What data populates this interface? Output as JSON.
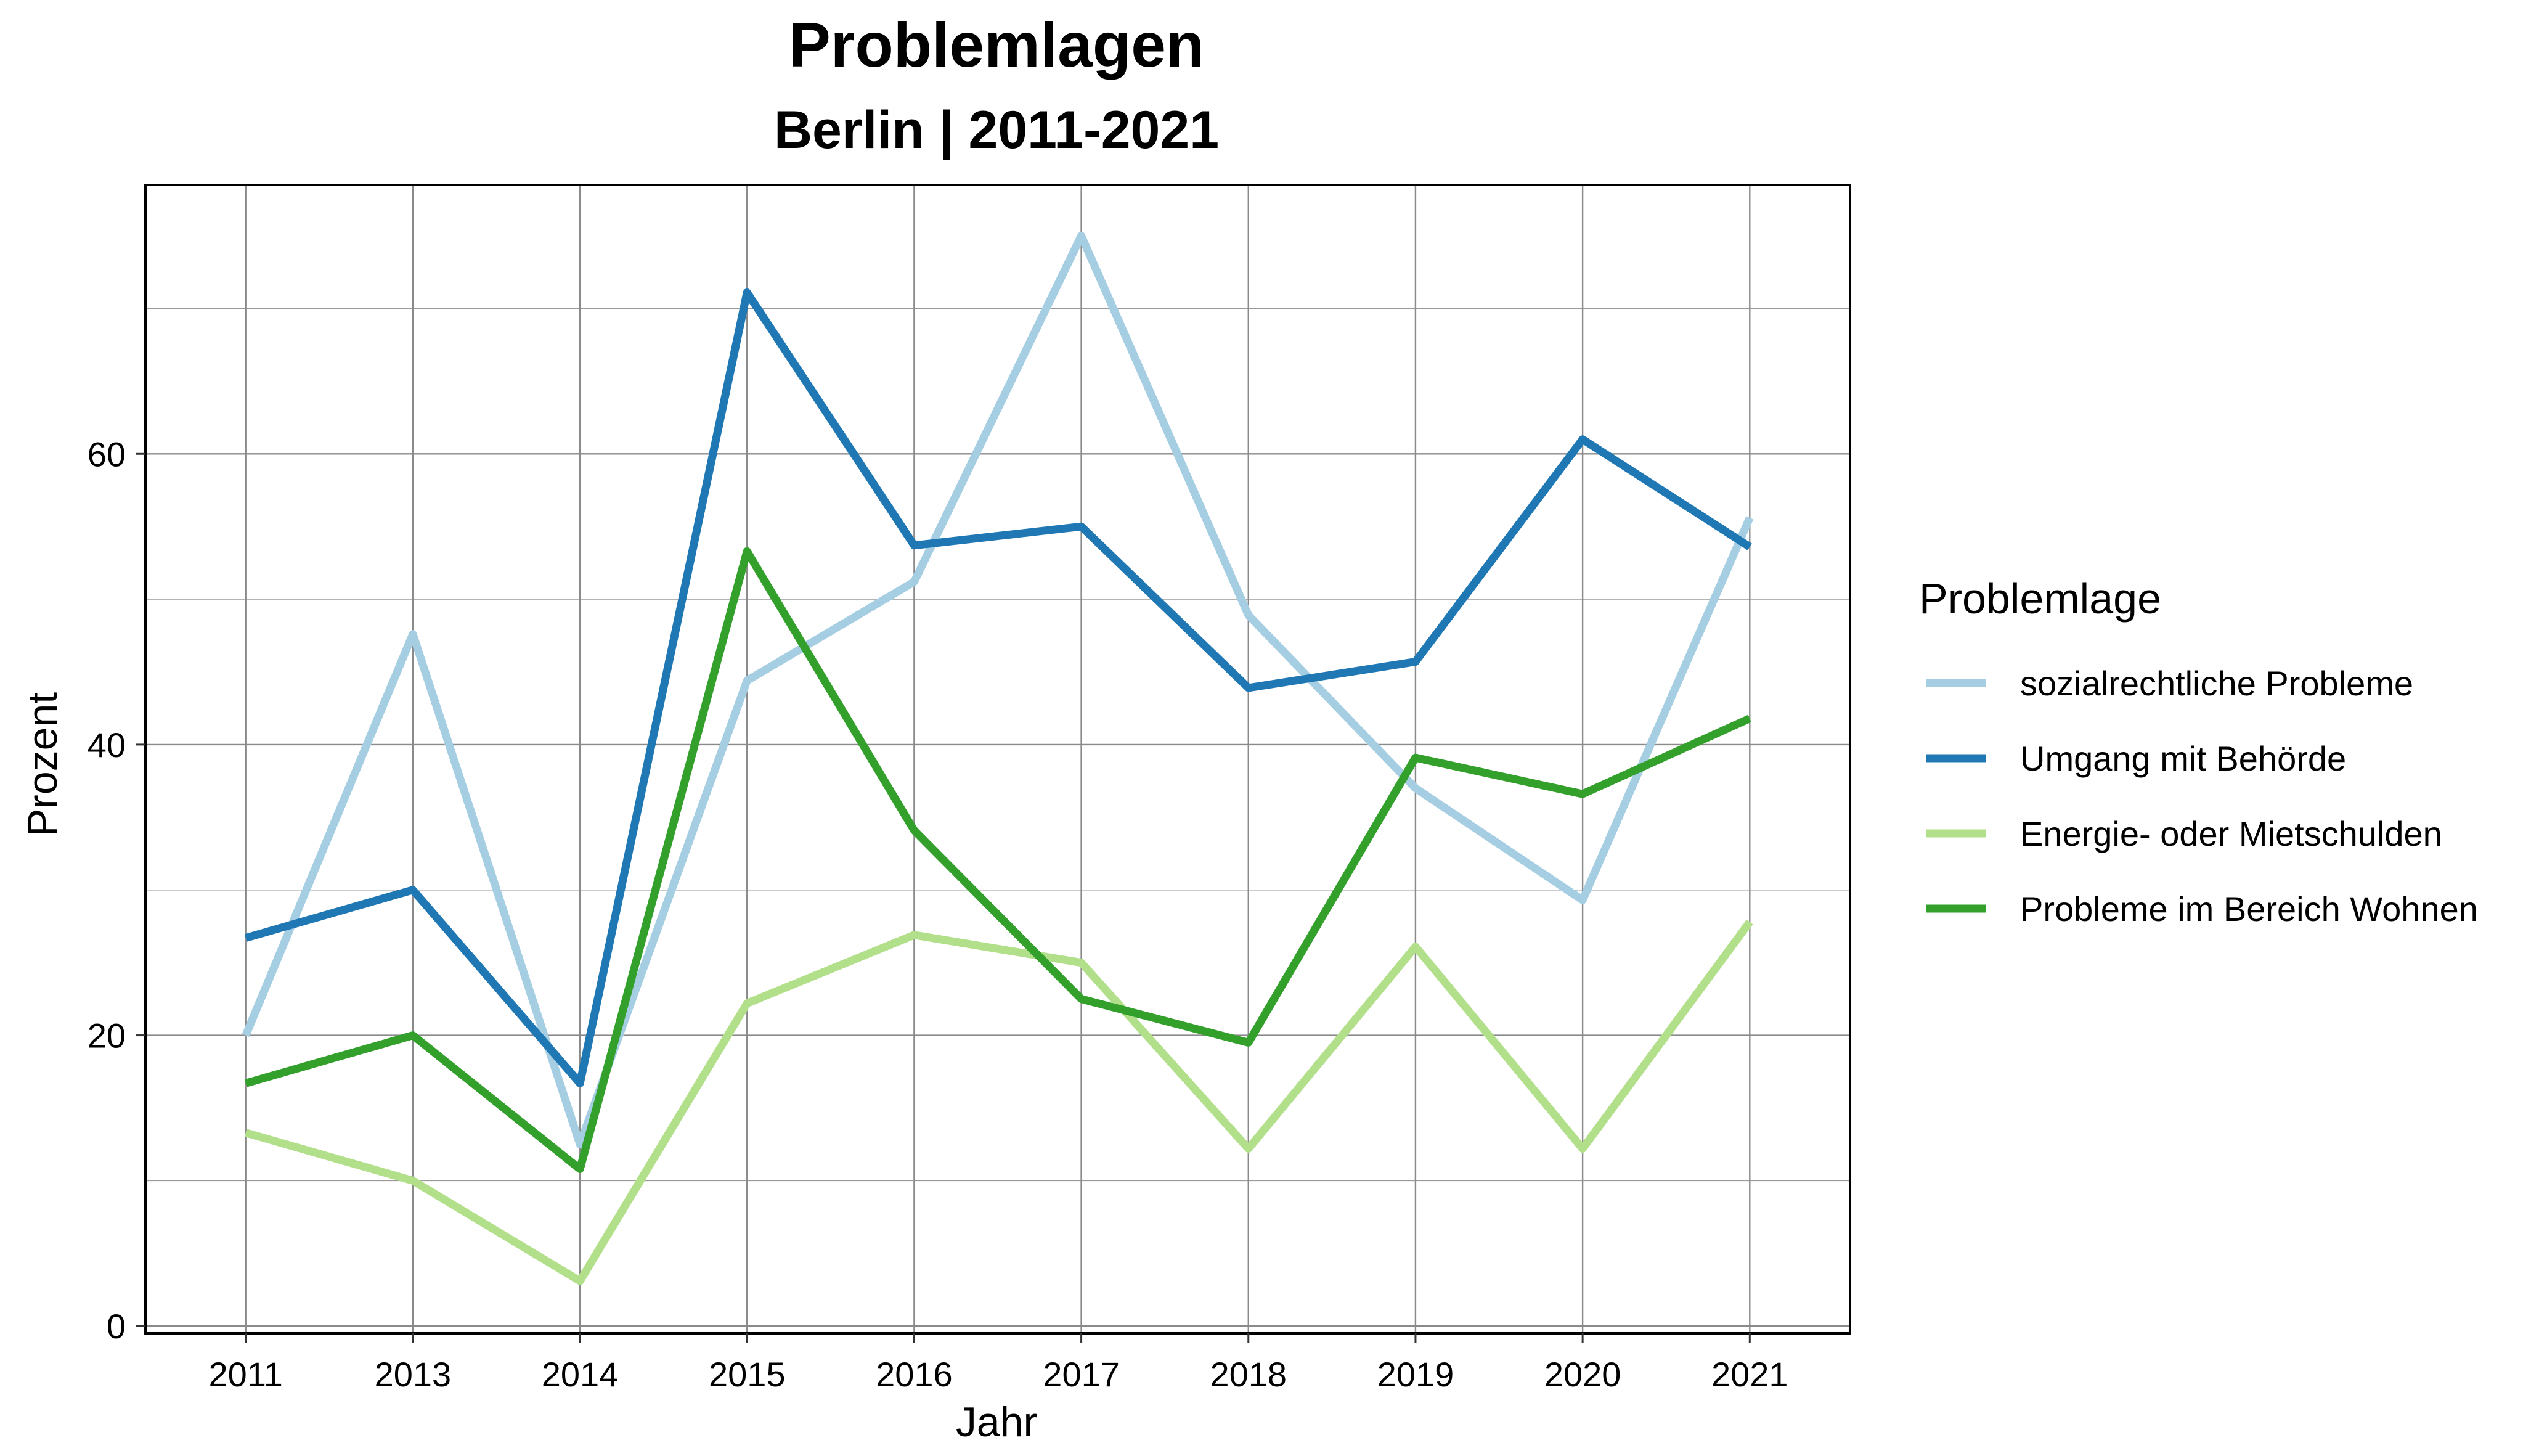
{
  "chart_data": {
    "type": "line",
    "title": "Problemlagen",
    "subtitle": "Berlin | 2011-2021",
    "xlabel": "Jahr",
    "ylabel": "Prozent",
    "categories": [
      "2011",
      "2013",
      "2014",
      "2015",
      "2016",
      "2017",
      "2018",
      "2019",
      "2020",
      "2021"
    ],
    "ylim": [
      -0.5,
      78.5
    ],
    "yticks": [
      0,
      20,
      40,
      60
    ],
    "y_minor_grid": [
      10,
      30,
      50,
      70
    ],
    "grid": true,
    "legend": {
      "title": "Problemlage",
      "position": "right"
    },
    "series": [
      {
        "name": "sozialrechtliche Probleme",
        "color": "#a6cee3",
        "values": [
          20.0,
          47.6,
          12.5,
          44.4,
          51.2,
          75.0,
          48.9,
          37.0,
          29.3,
          55.6
        ]
      },
      {
        "name": "Umgang mit Behörde",
        "color": "#1f78b4",
        "values": [
          26.7,
          30.0,
          16.7,
          71.1,
          53.7,
          55.0,
          43.9,
          45.7,
          61.0,
          53.6
        ]
      },
      {
        "name": "Energie- oder Mietschulden",
        "color": "#b2df8a",
        "values": [
          13.3,
          10.0,
          3.1,
          22.2,
          26.9,
          25.0,
          12.2,
          26.1,
          12.2,
          27.8
        ]
      },
      {
        "name": "Probleme im Bereich Wohnen",
        "color": "#33a02c",
        "values": [
          16.7,
          20.0,
          10.8,
          53.3,
          34.1,
          22.5,
          19.5,
          39.1,
          36.6,
          41.8
        ]
      }
    ]
  }
}
